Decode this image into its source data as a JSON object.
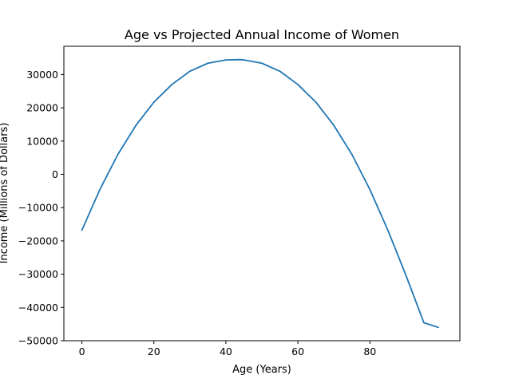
{
  "chart_data": {
    "type": "line",
    "title": "Age vs Projected Annual Income of Women",
    "xlabel": "Age (Years)",
    "ylabel": "Income (Millions of Dollars)",
    "xlim": [
      -5,
      105
    ],
    "ylim": [
      -50000,
      38500
    ],
    "xticks": [
      0,
      20,
      40,
      60,
      80
    ],
    "yticks": [
      -50000,
      -40000,
      -30000,
      -20000,
      -10000,
      0,
      10000,
      20000,
      30000
    ],
    "grid": false,
    "series": [
      {
        "color": "#1f77b4",
        "x": [
          0,
          5,
          10,
          15,
          20,
          25,
          30,
          35,
          40,
          44,
          45,
          50,
          55,
          60,
          65,
          70,
          75,
          80,
          85,
          90,
          95,
          99
        ],
        "y": [
          -16800,
          -4550,
          6000,
          14700,
          21700,
          27000,
          31000,
          33400,
          34400,
          34500,
          34400,
          33400,
          31000,
          27000,
          21700,
          14700,
          6000,
          -4550,
          -16800,
          -30300,
          -44600,
          -46000
        ]
      }
    ]
  }
}
